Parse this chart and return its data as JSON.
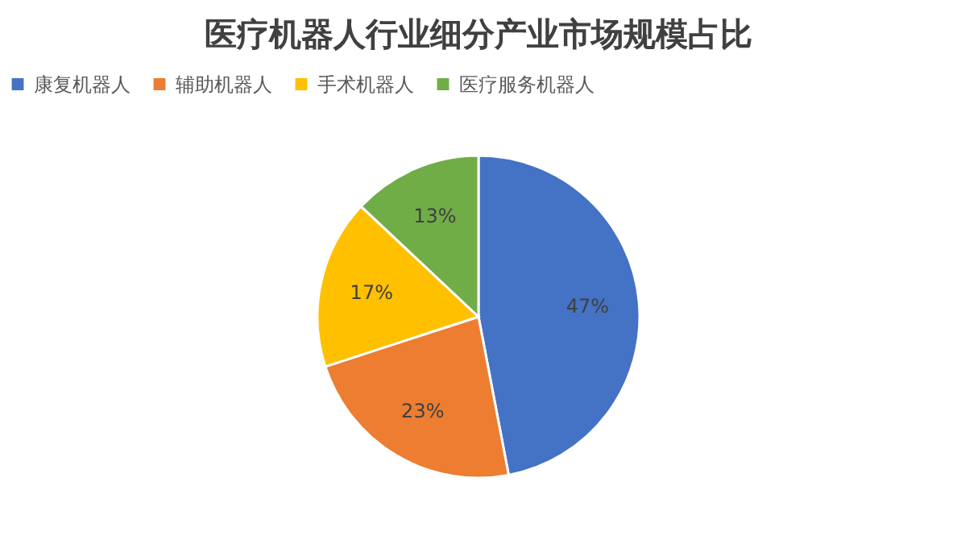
{
  "chart_data": {
    "type": "pie",
    "title": "医疗机器人行业细分产业市场规模占比",
    "categories": [
      "康复机器人",
      "辅助机器人",
      "手术机器人",
      "医疗服务机器人"
    ],
    "values": [
      47,
      23,
      17,
      13
    ],
    "colors": [
      "#4472c4",
      "#ed7d31",
      "#ffc000",
      "#70ad47"
    ],
    "value_labels": [
      "47%",
      "23%",
      "17%",
      "13%"
    ],
    "legend": "top"
  }
}
